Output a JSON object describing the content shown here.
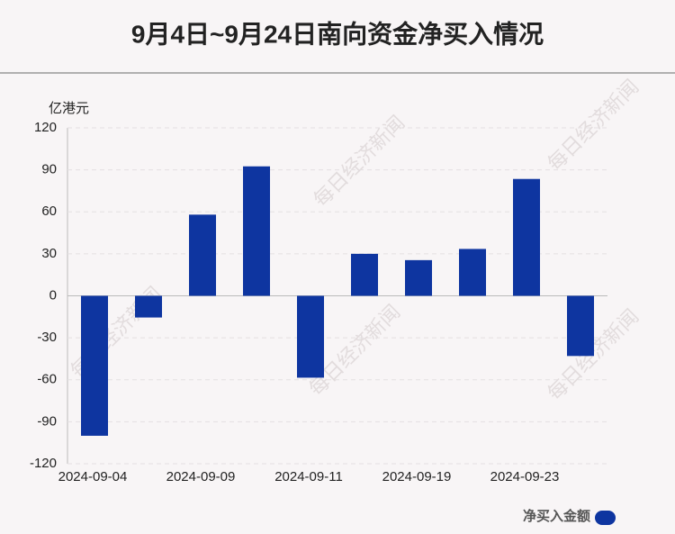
{
  "chart_data": {
    "type": "bar",
    "title": "9月4日~9月24日南向资金净买入情况",
    "y_unit": "亿港元",
    "watermark": "每日经济新闻",
    "categories": [
      "2024-09-04",
      null,
      "2024-09-09",
      null,
      "2024-09-11",
      null,
      "2024-09-19",
      null,
      "2024-09-23",
      null
    ],
    "series": [
      {
        "name": "净买入金额",
        "color": "#0e35a0",
        "values": [
          -100,
          -15.5,
          58,
          92.5,
          -58.5,
          30,
          25.5,
          33.5,
          83.5,
          -43
        ]
      }
    ],
    "ylim": [
      -120,
      120
    ],
    "yticks": [
      -120,
      -90,
      -60,
      -30,
      0,
      30,
      60,
      90,
      120
    ],
    "grid": true
  }
}
